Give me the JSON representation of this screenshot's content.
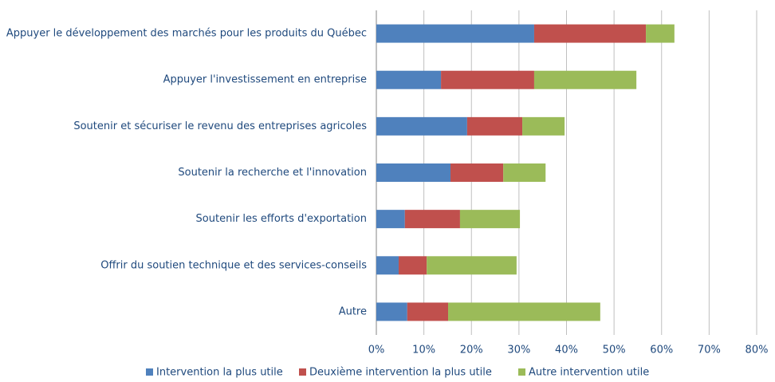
{
  "chart_data": {
    "type": "stacked_barh",
    "categories": [
      "Appuyer le développement des marchés pour les produits du Québec",
      "Appuyer l'investissement en entreprise",
      "Soutenir et sécuriser le revenu des entreprises agricoles",
      "Soutenir la recherche et l'innovation",
      "Soutenir les efforts d'exportation",
      "Offrir du soutien technique et des services-conseils",
      "Autre"
    ],
    "series": [
      {
        "name": "Intervention la plus utile",
        "color": "#4f81bd",
        "values": [
          33.2,
          13.6,
          19.1,
          15.6,
          6,
          4.7,
          6.5
        ]
      },
      {
        "name": "Deuxième intervention la plus utile",
        "color": "#c0504d",
        "values": [
          23.5,
          19.6,
          11.6,
          11.1,
          11.6,
          5.9,
          8.6
        ]
      },
      {
        "name": "Autre intervention utile",
        "color": "#9bbb59",
        "values": [
          6,
          21.5,
          8.9,
          8.9,
          12.6,
          18.9,
          32
        ]
      }
    ],
    "xlim": [
      0,
      80
    ],
    "xticks": [
      {
        "value": 0,
        "label": "0%"
      },
      {
        "value": 10,
        "label": "10%"
      },
      {
        "value": 20,
        "label": "20%"
      },
      {
        "value": 30,
        "label": "30%"
      },
      {
        "value": 40,
        "label": "40%"
      },
      {
        "value": 50,
        "label": "50%"
      },
      {
        "value": 60,
        "label": "60%"
      },
      {
        "value": 70,
        "label": "70%"
      },
      {
        "value": 80,
        "label": "80%"
      }
    ],
    "grid": true,
    "legend": "bottom"
  }
}
